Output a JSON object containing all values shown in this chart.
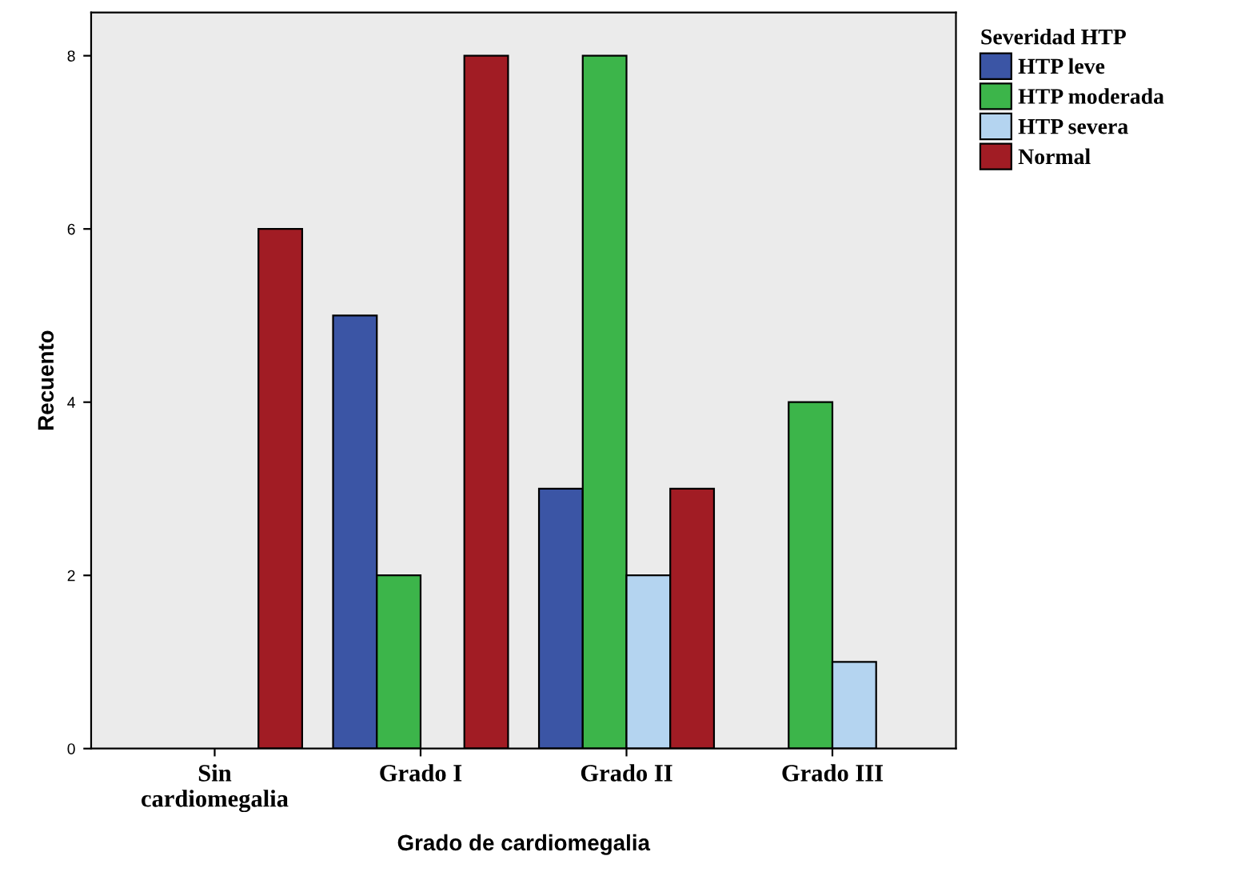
{
  "chart_data": {
    "type": "bar",
    "xlabel": "Grado de cardiomegalia",
    "ylabel": "Recuento",
    "legend_title": "Severidad HTP",
    "categories": [
      "Sin\ncardiomegalia",
      "Grado I",
      "Grado II",
      "Grado III"
    ],
    "series": [
      {
        "name": "HTP leve",
        "color": "#3b55a5",
        "values": [
          null,
          5,
          3,
          null
        ]
      },
      {
        "name": "HTP moderada",
        "color": "#3cb54a",
        "values": [
          null,
          2,
          8,
          4
        ]
      },
      {
        "name": "HTP severa",
        "color": "#b4d4f0",
        "values": [
          null,
          null,
          2,
          1
        ]
      },
      {
        "name": "Normal",
        "color": "#a11c24",
        "values": [
          6,
          8,
          3,
          null
        ]
      }
    ],
    "ylim": [
      0,
      8.5
    ],
    "yticks": [
      0,
      2,
      4,
      6,
      8
    ],
    "grid": false,
    "legend": "top right"
  }
}
